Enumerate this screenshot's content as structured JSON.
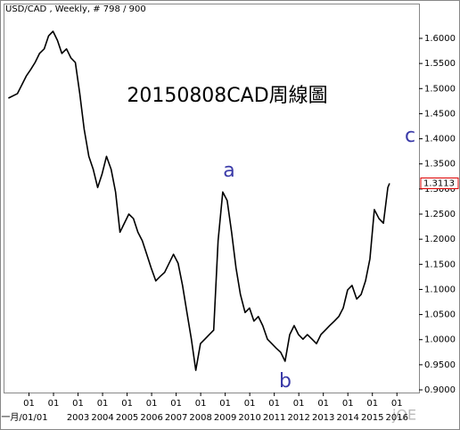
{
  "chart_data": {
    "type": "line",
    "title": "USD/CAD , Weekly, # 798 / 900",
    "annotations": [
      "20150808CAD周線圖",
      "a",
      "b",
      "c"
    ],
    "watermark": "jOE",
    "series": [
      {
        "name": "USD/CAD",
        "color": "#000000",
        "x": [
          2000.16,
          2000.53,
          2000.89,
          2001.07,
          2001.25,
          2001.43,
          2001.62,
          2001.8,
          2001.98,
          2002.16,
          2002.34,
          2002.53,
          2002.71,
          2002.89,
          2003.07,
          2003.25,
          2003.44,
          2003.62,
          2003.8,
          2003.98,
          2004.16,
          2004.35,
          2004.53,
          2004.71,
          2004.89,
          2005.07,
          2005.26,
          2005.44,
          2005.62,
          2005.8,
          2005.98,
          2006.17,
          2006.35,
          2006.53,
          2006.71,
          2006.89,
          2007.08,
          2007.26,
          2007.44,
          2007.62,
          2007.8,
          2007.99,
          2008.17,
          2008.35,
          2008.53,
          2008.71,
          2008.9,
          2009.08,
          2009.26,
          2009.44,
          2009.62,
          2009.81,
          2009.99,
          2010.17,
          2010.35,
          2010.53,
          2010.72,
          2010.9,
          2011.08,
          2011.26,
          2011.44,
          2011.63,
          2011.81,
          2011.99,
          2012.17,
          2012.35,
          2012.54,
          2012.72,
          2012.9,
          2013.08,
          2013.26,
          2013.45,
          2013.63,
          2013.81,
          2013.99,
          2014.17,
          2014.36,
          2014.54,
          2014.72,
          2014.9,
          2015.08,
          2015.27,
          2015.45,
          2015.63,
          2015.7
        ],
        "values": [
          1.481,
          1.49,
          1.525,
          1.538,
          1.552,
          1.57,
          1.579,
          1.605,
          1.614,
          1.596,
          1.57,
          1.579,
          1.561,
          1.552,
          1.49,
          1.419,
          1.365,
          1.339,
          1.303,
          1.33,
          1.365,
          1.339,
          1.294,
          1.214,
          1.232,
          1.25,
          1.241,
          1.214,
          1.197,
          1.17,
          1.143,
          1.117,
          1.126,
          1.134,
          1.152,
          1.17,
          1.152,
          1.108,
          1.054,
          1.001,
          0.939,
          0.992,
          1.001,
          1.01,
          1.019,
          1.197,
          1.294,
          1.277,
          1.214,
          1.143,
          1.09,
          1.054,
          1.063,
          1.037,
          1.046,
          1.028,
          1.001,
          0.992,
          0.983,
          0.975,
          0.957,
          1.01,
          1.028,
          1.01,
          1.001,
          1.01,
          1.001,
          0.992,
          1.01,
          1.019,
          1.028,
          1.037,
          1.046,
          1.063,
          1.099,
          1.108,
          1.081,
          1.09,
          1.117,
          1.161,
          1.259,
          1.241,
          1.232,
          1.303,
          1.3113
        ]
      }
    ],
    "last_price": {
      "value": 1.3113,
      "label": "1.3113"
    },
    "xlim": [
      2000.0,
      2016.9
    ],
    "ylim": [
      0.8947,
      1.6675
    ],
    "xticks": [
      {
        "value": 2001,
        "label": "01"
      },
      {
        "value": 2002,
        "label": "01"
      },
      {
        "value": 2003,
        "label": "01"
      },
      {
        "value": 2004,
        "label": "01"
      },
      {
        "value": 2005,
        "label": "01"
      },
      {
        "value": 2006,
        "label": "01"
      },
      {
        "value": 2007,
        "label": "01"
      },
      {
        "value": 2008,
        "label": "01"
      },
      {
        "value": 2009,
        "label": "01"
      },
      {
        "value": 2010,
        "label": "01"
      },
      {
        "value": 2011,
        "label": "01"
      },
      {
        "value": 2012,
        "label": "01"
      },
      {
        "value": 2013,
        "label": "01"
      },
      {
        "value": 2014,
        "label": "01"
      },
      {
        "value": 2015,
        "label": "01"
      },
      {
        "value": 2016,
        "label": "01"
      }
    ],
    "xticks_years": [
      {
        "value": 2001,
        "label": "一月/01/01"
      },
      {
        "value": 2003,
        "label": "2003"
      },
      {
        "value": 2004,
        "label": "2004"
      },
      {
        "value": 2005,
        "label": "2005"
      },
      {
        "value": 2006,
        "label": "2006"
      },
      {
        "value": 2007,
        "label": "2007"
      },
      {
        "value": 2008,
        "label": "2008"
      },
      {
        "value": 2009,
        "label": "2009"
      },
      {
        "value": 2010,
        "label": "2010"
      },
      {
        "value": 2011,
        "label": "2011"
      },
      {
        "value": 2012,
        "label": "2012"
      },
      {
        "value": 2013,
        "label": "2013"
      },
      {
        "value": 2014,
        "label": "2014"
      },
      {
        "value": 2015,
        "label": "2015"
      },
      {
        "value": 2016,
        "label": "2016"
      }
    ],
    "yticks": [
      {
        "value": 0.9,
        "label": "0.9000"
      },
      {
        "value": 0.95,
        "label": "0.9500"
      },
      {
        "value": 1.0,
        "label": "1.0000"
      },
      {
        "value": 1.05,
        "label": "1.0500"
      },
      {
        "value": 1.1,
        "label": "1.1000"
      },
      {
        "value": 1.15,
        "label": "1.1500"
      },
      {
        "value": 1.2,
        "label": "1.2000"
      },
      {
        "value": 1.25,
        "label": "1.2500"
      },
      {
        "value": 1.3,
        "label": "1.3000"
      },
      {
        "value": 1.35,
        "label": "1.3500"
      },
      {
        "value": 1.4,
        "label": "1.4000"
      },
      {
        "value": 1.45,
        "label": "1.4500"
      },
      {
        "value": 1.5,
        "label": "1.5000"
      },
      {
        "value": 1.55,
        "label": "1.5500"
      },
      {
        "value": 1.6,
        "label": "1.6000"
      }
    ],
    "grid": false
  }
}
